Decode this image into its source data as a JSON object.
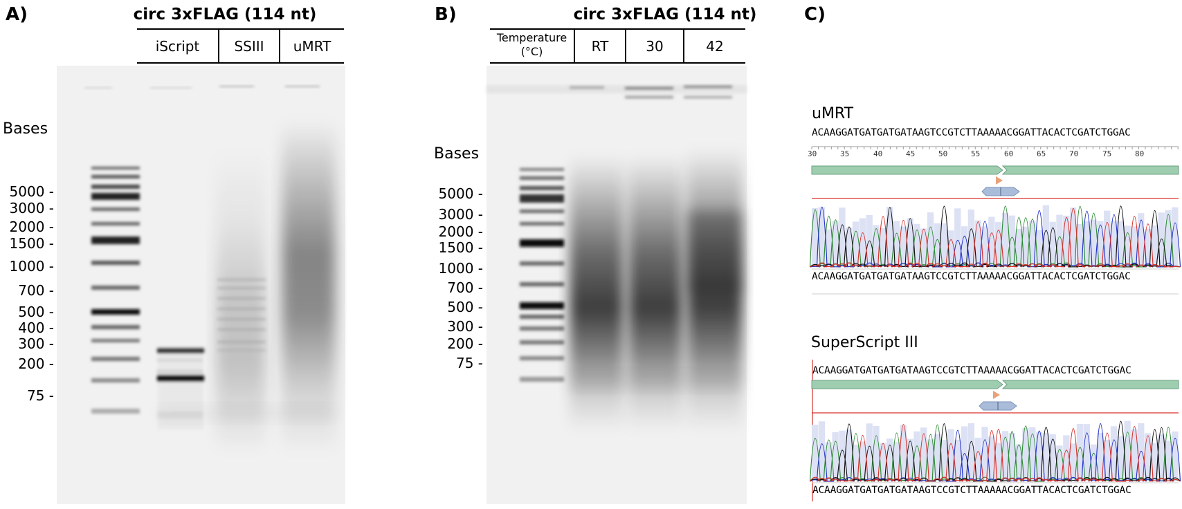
{
  "panel_a": {
    "label": "A)",
    "title": "circ 3xFLAG (114 nt)",
    "lanes": [
      "iScript",
      "SSIII",
      "uMRT"
    ],
    "axis_title": "Bases",
    "sizes": [
      "5000 -",
      "3000 -",
      "2000 -",
      "1500 -",
      "1000 -",
      "700 -",
      "500 -",
      "400 -",
      "300 -",
      "200 -",
      "75 -"
    ]
  },
  "panel_b": {
    "label": "B)",
    "title": "circ 3xFLAG (114 nt)",
    "temp_header_line1": "Temperature",
    "temp_header_line2": "(°C)",
    "lanes": [
      "RT",
      "30",
      "42"
    ],
    "axis_title": "Bases",
    "sizes": [
      "5000 -",
      "3000 -",
      "2000 -",
      "1500 -",
      "1000 -",
      "700 -",
      "500 -",
      "300 -",
      "200 -",
      "75 -"
    ]
  },
  "panel_c": {
    "label": "C)",
    "trace1": {
      "title": "uMRT",
      "sequence_top": "ACAAGGATGATGATGATAAGTCCGTCTTAAAAACGGATTACACTCGATCTGGAC",
      "sequence_bottom": "ACAAGGATGATGATGATAAGTCCGTCTTAAAAACGGATTACACTCGATCTGGAC",
      "ruler": [
        "30",
        "35",
        "40",
        "45",
        "50",
        "55",
        "60",
        "65",
        "70",
        "75",
        "80"
      ]
    },
    "trace2": {
      "title": "SuperScript III",
      "sequence_top": "ACAAGGATGATGATGATAAGTCCGTCTTAAAAACGGATTACACTCGATCTGGAC",
      "sequence_bottom": "ACAAGGATGATGATGATAAGTCCGTCTTAAAAACGGATTACACTCGATCTGGAC"
    }
  },
  "colors": {
    "gel_bg": "#f1f1f1",
    "feature_green": "#9fcdb0",
    "feature_blue": "#a9bddb",
    "marker_orange": "#e8a27a",
    "trace_red": "#d9312b",
    "trace_green": "#2e8b35",
    "trace_blue": "#2433c8",
    "trace_black": "#111111",
    "quality_bar": "#dde1f4"
  }
}
